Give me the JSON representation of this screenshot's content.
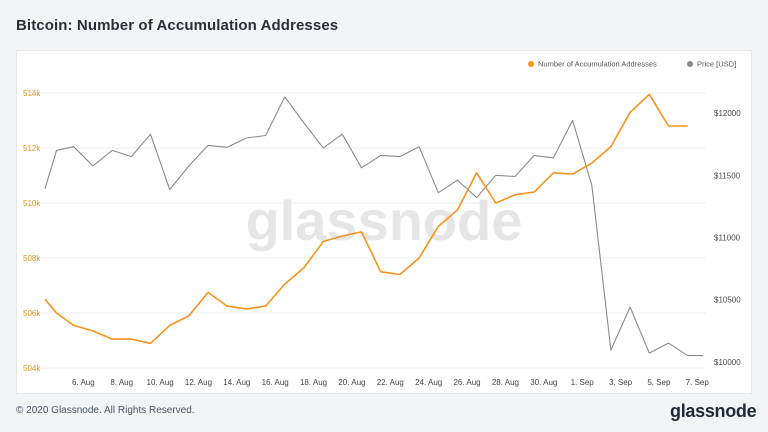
{
  "title": "Bitcoin: Number of Accumulation Addresses",
  "footer": {
    "copyright": "© 2020 Glassnode. All Rights Reserved.",
    "brand": "glassnode"
  },
  "watermark": "glassnode",
  "colors": {
    "addresses": "#f7931a",
    "price": "#8a8a8a",
    "left_axis_text": "#e8901c",
    "right_axis_text": "#4a4a4a"
  },
  "chart_data": {
    "type": "line",
    "title": "Bitcoin: Number of Accumulation Addresses",
    "grid": true,
    "legend_position": "top-right",
    "x_ticks": [
      "6. Aug",
      "8. Aug",
      "10. Aug",
      "12. Aug",
      "14. Aug",
      "16. Aug",
      "18. Aug",
      "20. Aug",
      "22. Aug",
      "24. Aug",
      "26. Aug",
      "28. Aug",
      "30. Aug",
      "1. Sep",
      "3. Sep",
      "5. Sep",
      "7. Sep"
    ],
    "x_range": [
      3.95,
      38.35
    ],
    "y_left": {
      "ticks": [
        504000,
        506000,
        508000,
        510000,
        512000,
        514000
      ],
      "tick_labels": [
        "504k",
        "506k",
        "508k",
        "510k",
        "512k",
        "514k"
      ],
      "range": [
        504000,
        514400
      ]
    },
    "y_right": {
      "ticks": [
        10000,
        10500,
        11000,
        11500,
        12000
      ],
      "tick_labels": [
        "$10000",
        "$10500",
        "$11000",
        "$11500",
        "$12000"
      ],
      "range": [
        9950,
        12250
      ]
    },
    "series": [
      {
        "name": "Number of Accumulation Addresses",
        "axis": "left",
        "x": [
          4.0,
          4.6,
          5.5,
          6.5,
          7.5,
          8.5,
          9.5,
          10.5,
          11.5,
          12.5,
          13.5,
          14.5,
          15.5,
          16.5,
          17.5,
          18.5,
          19.5,
          20.5,
          21.5,
          22.5,
          23.5,
          24.5,
          25.5,
          26.5,
          27.5,
          28.5,
          29.5,
          30.5,
          31.5,
          32.5,
          33.5,
          34.5,
          35.5,
          36.5,
          37.5
        ],
        "y": [
          506500,
          506000,
          505550,
          505350,
          505050,
          505050,
          504900,
          505550,
          505900,
          506750,
          506250,
          506150,
          506250,
          507050,
          507650,
          508600,
          508800,
          508950,
          507500,
          507400,
          508000,
          509150,
          509750,
          511100,
          510000,
          510300,
          510400,
          511100,
          511050,
          511450,
          512050,
          513300,
          513950,
          512800,
          512800
        ]
      },
      {
        "name": "Price [USD]",
        "axis": "right",
        "x": [
          4.0,
          4.6,
          5.5,
          6.5,
          7.5,
          8.5,
          9.5,
          10.5,
          11.5,
          12.5,
          13.5,
          14.5,
          15.5,
          16.5,
          17.5,
          18.5,
          19.5,
          20.5,
          21.5,
          22.5,
          23.5,
          24.5,
          25.5,
          26.5,
          27.5,
          28.5,
          29.5,
          30.5,
          31.5,
          32.5,
          33.5,
          34.5,
          35.5,
          36.5,
          37.5,
          38.3
        ],
        "y": [
          11390,
          11700,
          11730,
          11575,
          11700,
          11650,
          11830,
          11385,
          11575,
          11740,
          11725,
          11800,
          11820,
          12130,
          11920,
          11720,
          11830,
          11560,
          11660,
          11650,
          11730,
          11360,
          11460,
          11320,
          11500,
          11490,
          11660,
          11640,
          11940,
          11420,
          10095,
          10440,
          10070,
          10150,
          10050,
          10050
        ]
      }
    ]
  }
}
